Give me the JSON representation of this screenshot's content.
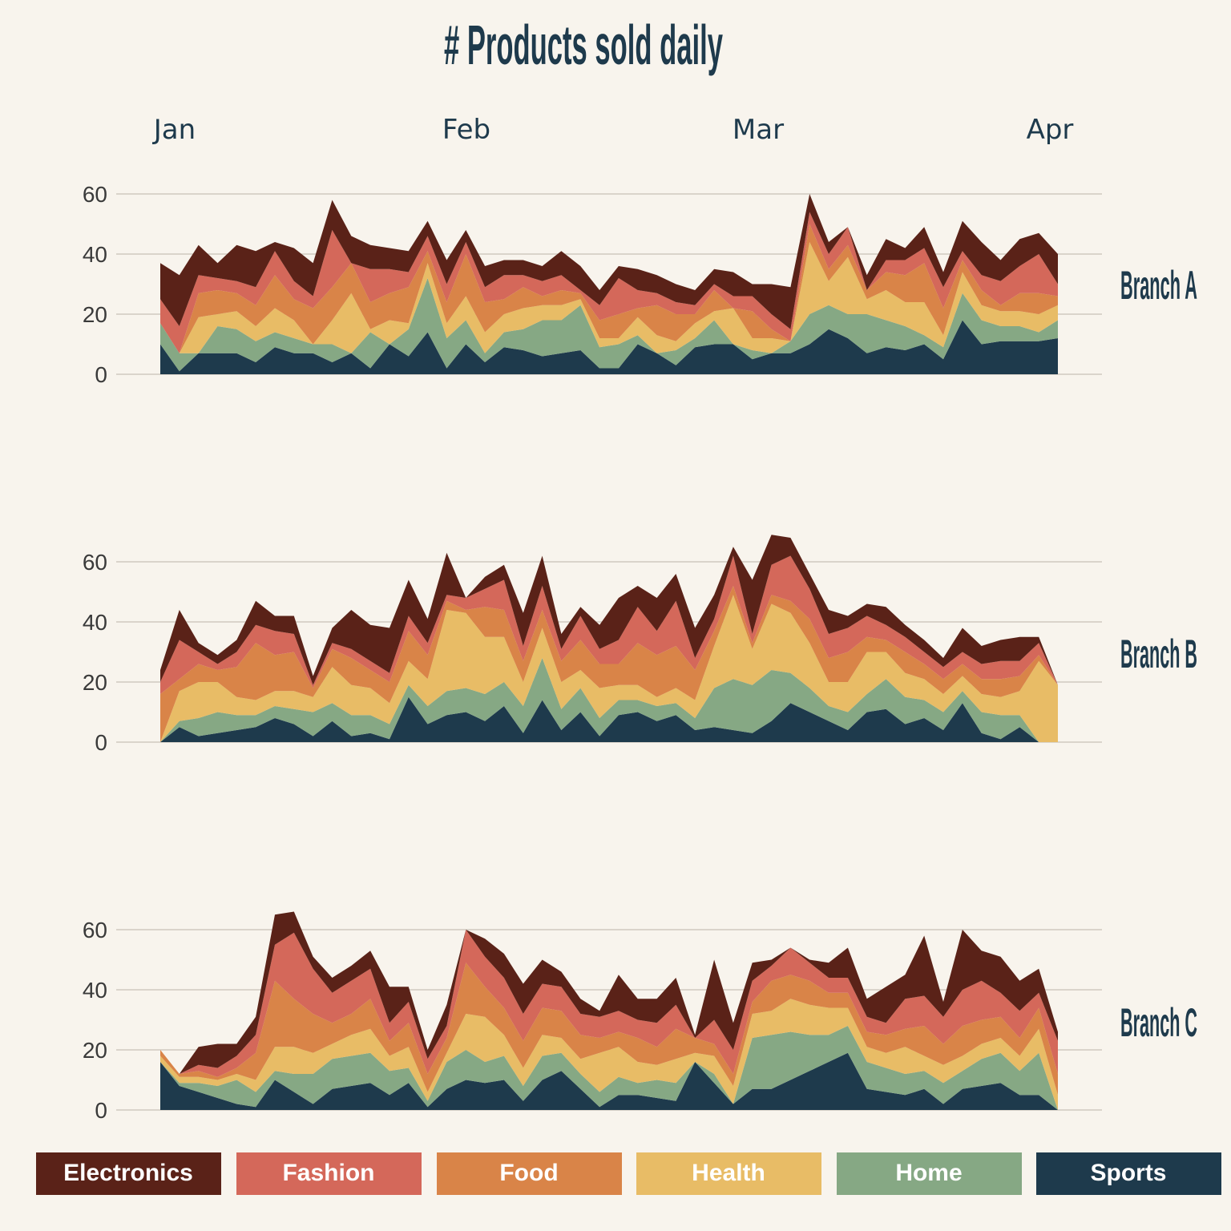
{
  "chart_data": {
    "type": "area",
    "title": "# Products sold daily",
    "x_ticks": [
      "Jan",
      "Feb",
      "Mar",
      "Apr"
    ],
    "y_ticks": [
      0,
      20,
      40,
      60
    ],
    "ylim": [
      0,
      70
    ],
    "grid": true,
    "legend_position": "bottom",
    "layers": [
      "Sports",
      "Home",
      "Health",
      "Food",
      "Fashion",
      "Electronics"
    ],
    "legend_order": [
      "Electronics",
      "Fashion",
      "Food",
      "Health",
      "Home",
      "Sports"
    ],
    "colors": {
      "Electronics": "#5a2218",
      "Fashion": "#d4685a",
      "Food": "#d98448",
      "Health": "#e8bc66",
      "Home": "#86a884",
      "Sports": "#1e3a4c"
    },
    "panels": [
      {
        "name": "Branch A",
        "series": {
          "Sports": [
            10,
            1,
            7,
            7,
            7,
            4,
            9,
            7,
            7,
            4,
            7,
            2,
            10,
            6,
            14,
            2,
            10,
            4,
            9,
            8,
            6,
            7,
            8,
            2,
            2,
            10,
            7,
            3,
            9,
            10,
            10,
            5,
            7,
            7,
            10,
            15,
            12,
            7,
            9,
            8,
            10,
            5,
            18,
            10,
            11,
            11,
            11,
            12
          ],
          "Home": [
            7,
            6,
            0,
            9,
            8,
            7,
            5,
            5,
            3,
            6,
            0,
            12,
            0,
            9,
            18,
            10,
            8,
            3,
            5,
            7,
            12,
            11,
            15,
            7,
            8,
            3,
            0,
            5,
            3,
            8,
            0,
            3,
            0,
            4,
            10,
            8,
            8,
            13,
            9,
            8,
            3,
            4,
            9,
            8,
            5,
            5,
            3,
            6
          ],
          "Health": [
            0,
            0,
            12,
            4,
            6,
            5,
            8,
            6,
            0,
            8,
            20,
            1,
            8,
            2,
            5,
            5,
            8,
            7,
            6,
            7,
            5,
            5,
            2,
            3,
            2,
            6,
            6,
            3,
            5,
            3,
            12,
            4,
            5,
            0,
            24,
            8,
            19,
            5,
            10,
            8,
            11,
            4,
            7,
            5,
            5,
            5,
            6,
            5
          ],
          "Food": [
            0,
            0,
            8,
            8,
            6,
            7,
            11,
            7,
            12,
            11,
            10,
            9,
            9,
            12,
            4,
            7,
            14,
            10,
            5,
            7,
            3,
            5,
            2,
            6,
            8,
            3,
            10,
            9,
            3,
            7,
            0,
            9,
            3,
            0,
            6,
            4,
            4,
            3,
            6,
            9,
            13,
            9,
            4,
            5,
            2,
            6,
            7,
            3
          ],
          "Fashion": [
            8,
            9,
            6,
            4,
            4,
            6,
            8,
            6,
            4,
            19,
            0,
            11,
            8,
            5,
            5,
            6,
            4,
            5,
            8,
            4,
            5,
            5,
            1,
            5,
            12,
            6,
            4,
            4,
            3,
            2,
            4,
            5,
            5,
            4,
            4,
            5,
            6,
            0,
            4,
            5,
            5,
            7,
            3,
            5,
            8,
            9,
            13,
            4
          ],
          "Electronics": [
            12,
            17,
            10,
            5,
            12,
            12,
            3,
            11,
            11,
            10,
            9,
            8,
            7,
            7,
            5,
            8,
            4,
            7,
            5,
            5,
            5,
            8,
            8,
            5,
            4,
            7,
            6,
            6,
            5,
            5,
            8,
            4,
            10,
            14,
            6,
            4,
            0,
            5,
            7,
            4,
            7,
            5,
            10,
            11,
            7,
            9,
            7,
            10
          ]
        }
      },
      {
        "name": "Branch B",
        "series": {
          "Sports": [
            0,
            5,
            2,
            3,
            4,
            5,
            8,
            6,
            2,
            7,
            2,
            3,
            1,
            15,
            6,
            9,
            10,
            7,
            12,
            3,
            14,
            4,
            10,
            2,
            9,
            10,
            7,
            9,
            4,
            5,
            4,
            3,
            7,
            13,
            10,
            7,
            4,
            10,
            11,
            6,
            8,
            4,
            13,
            3,
            1,
            5,
            0,
            0
          ],
          "Home": [
            0,
            2,
            6,
            7,
            5,
            4,
            4,
            5,
            8,
            6,
            7,
            6,
            5,
            4,
            6,
            8,
            8,
            9,
            8,
            9,
            14,
            7,
            8,
            6,
            5,
            4,
            5,
            4,
            4,
            13,
            17,
            16,
            17,
            10,
            8,
            5,
            6,
            6,
            10,
            9,
            6,
            6,
            4,
            7,
            8,
            4,
            0,
            0
          ],
          "Health": [
            0,
            10,
            12,
            10,
            6,
            5,
            5,
            6,
            5,
            12,
            10,
            9,
            7,
            8,
            9,
            27,
            25,
            19,
            15,
            8,
            10,
            9,
            6,
            10,
            5,
            5,
            3,
            5,
            6,
            14,
            28,
            12,
            22,
            20,
            15,
            8,
            10,
            14,
            9,
            8,
            7,
            6,
            5,
            6,
            6,
            8,
            27,
            19
          ],
          "Food": [
            16,
            4,
            6,
            4,
            10,
            19,
            12,
            13,
            3,
            6,
            9,
            6,
            7,
            10,
            8,
            3,
            1,
            10,
            9,
            7,
            6,
            7,
            10,
            8,
            7,
            14,
            14,
            14,
            10,
            5,
            3,
            2,
            3,
            4,
            8,
            8,
            10,
            5,
            4,
            7,
            5,
            5,
            4,
            5,
            6,
            5,
            2,
            0
          ],
          "Fashion": [
            4,
            13,
            4,
            2,
            5,
            6,
            8,
            6,
            1,
            2,
            3,
            3,
            3,
            5,
            4,
            2,
            4,
            6,
            10,
            5,
            8,
            4,
            8,
            5,
            8,
            12,
            8,
            15,
            4,
            4,
            10,
            3,
            10,
            15,
            10,
            8,
            8,
            7,
            5,
            5,
            4,
            4,
            4,
            5,
            6,
            5,
            4,
            0
          ],
          "Electronics": [
            4,
            10,
            3,
            3,
            4,
            8,
            5,
            6,
            3,
            5,
            13,
            12,
            15,
            12,
            8,
            14,
            0,
            4,
            5,
            11,
            10,
            5,
            3,
            8,
            14,
            7,
            11,
            9,
            10,
            8,
            3,
            18,
            10,
            6,
            5,
            8,
            4,
            4,
            6,
            4,
            4,
            3,
            8,
            6,
            7,
            8,
            2,
            0
          ]
        }
      },
      {
        "name": "Branch C",
        "series": {
          "Sports": [
            16,
            8,
            6,
            4,
            2,
            1,
            10,
            6,
            2,
            7,
            8,
            9,
            5,
            9,
            1,
            7,
            10,
            9,
            10,
            3,
            10,
            13,
            7,
            1,
            5,
            5,
            4,
            3,
            16,
            9,
            2,
            7,
            7,
            10,
            13,
            16,
            19,
            7,
            6,
            5,
            7,
            2,
            7,
            8,
            9,
            5,
            5,
            0
          ],
          "Home": [
            0,
            1,
            3,
            4,
            8,
            5,
            3,
            6,
            10,
            10,
            10,
            10,
            8,
            5,
            2,
            9,
            10,
            7,
            8,
            5,
            8,
            6,
            5,
            5,
            6,
            4,
            6,
            6,
            0,
            3,
            0,
            17,
            18,
            16,
            12,
            9,
            9,
            9,
            8,
            7,
            6,
            7,
            6,
            9,
            10,
            8,
            14,
            0
          ],
          "Health": [
            2,
            2,
            2,
            2,
            2,
            4,
            8,
            9,
            7,
            5,
            7,
            8,
            5,
            7,
            3,
            3,
            12,
            15,
            7,
            6,
            7,
            5,
            5,
            13,
            10,
            7,
            5,
            8,
            3,
            6,
            6,
            8,
            8,
            11,
            10,
            9,
            6,
            5,
            5,
            9,
            5,
            6,
            5,
            5,
            5,
            5,
            8,
            5
          ],
          "Food": [
            2,
            1,
            2,
            1,
            2,
            9,
            22,
            16,
            13,
            7,
            7,
            10,
            5,
            8,
            6,
            5,
            17,
            10,
            9,
            9,
            9,
            9,
            8,
            5,
            5,
            8,
            6,
            10,
            5,
            4,
            4,
            4,
            10,
            8,
            8,
            5,
            5,
            5,
            6,
            6,
            10,
            7,
            10,
            8,
            7,
            6,
            7,
            7
          ],
          "Fashion": [
            0,
            0,
            2,
            3,
            4,
            6,
            12,
            22,
            15,
            10,
            11,
            10,
            6,
            7,
            5,
            4,
            11,
            10,
            10,
            9,
            8,
            8,
            7,
            7,
            7,
            6,
            8,
            8,
            0,
            8,
            8,
            7,
            5,
            9,
            6,
            5,
            5,
            5,
            4,
            10,
            10,
            9,
            12,
            13,
            8,
            9,
            5,
            11
          ],
          "Electronics": [
            0,
            0,
            6,
            8,
            4,
            6,
            10,
            7,
            4,
            5,
            5,
            6,
            12,
            5,
            3,
            7,
            0,
            6,
            8,
            10,
            8,
            5,
            5,
            2,
            12,
            7,
            8,
            9,
            1,
            20,
            9,
            6,
            2,
            0,
            1,
            5,
            10,
            6,
            12,
            8,
            20,
            5,
            20,
            10,
            12,
            10,
            8,
            3
          ]
        }
      }
    ]
  }
}
